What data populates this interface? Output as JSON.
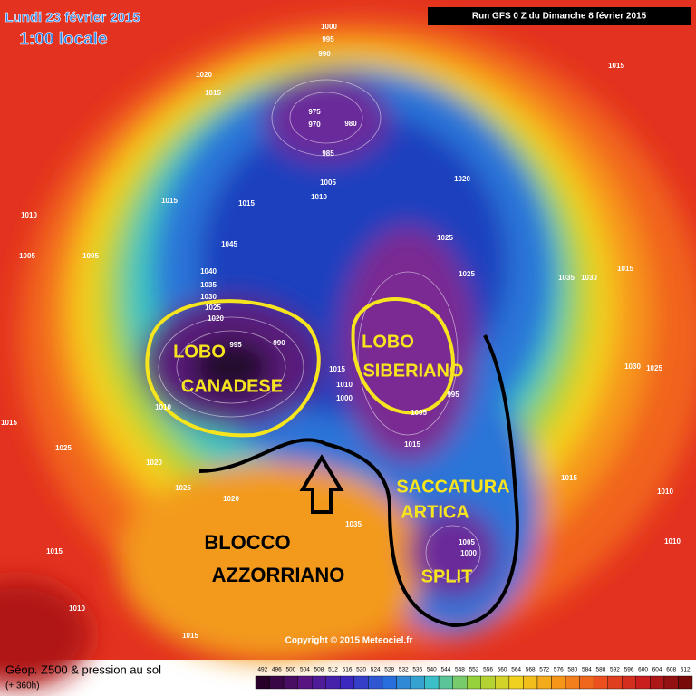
{
  "header": {
    "date": "Lundi 23 février 2015",
    "time": "1:00 locale",
    "run": "Run GFS 0 Z du Dimanche 8 février 2015"
  },
  "annotations": [
    {
      "lines": [
        "LOBO",
        "CANADESE"
      ]
    },
    {
      "lines": [
        "LOBO",
        "SIBERIANO"
      ]
    },
    {
      "lines": [
        "SACCATURA",
        "ARTICA"
      ]
    },
    {
      "lines": [
        "BLOCCO",
        "AZZORRIANO"
      ]
    },
    {
      "lines": [
        "SPLIT"
      ]
    }
  ],
  "isobar_labels": [
    1000,
    995,
    990,
    1015,
    1020,
    1015,
    975,
    970,
    980,
    985,
    1005,
    1010,
    1015,
    1015,
    1020,
    1010,
    1045,
    1025,
    1005,
    1005,
    1025,
    1035,
    1030,
    1015,
    1040,
    1035,
    1030,
    1025,
    1020,
    990,
    995,
    1030,
    1025,
    1015,
    1010,
    1000,
    1005,
    1015,
    1010,
    1025,
    1015,
    1020,
    1025,
    1020,
    1015,
    1010,
    1035,
    1005,
    1015,
    1010,
    1015,
    1010,
    995,
    1000
  ],
  "copyright": "Copyright © 2015 Meteociel.fr",
  "footer": {
    "title": "Géop. Z500 & pression au sol",
    "lead": "(+ 360h)"
  },
  "scale": [
    492,
    496,
    500,
    504,
    508,
    512,
    516,
    520,
    524,
    528,
    532,
    536,
    540,
    544,
    548,
    552,
    556,
    560,
    564,
    568,
    572,
    576,
    580,
    584,
    588,
    592,
    596,
    600,
    604,
    608,
    612
  ]
}
